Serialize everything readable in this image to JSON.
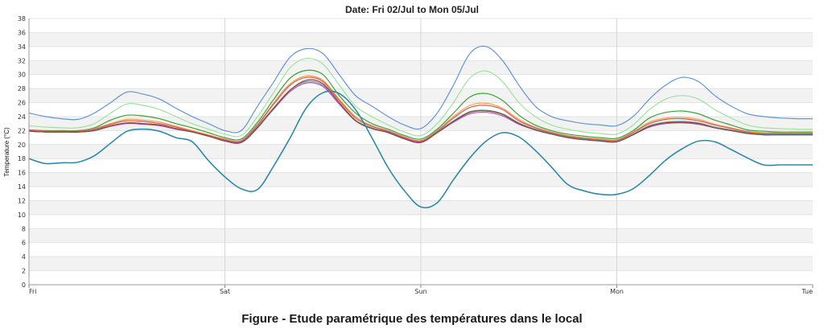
{
  "caption": "Figure  - Etude paramétrique  des températures dans  le local",
  "chart_data": {
    "type": "line",
    "title": "Date: Fri 02/Jul to Mon 05/Jul",
    "xlabel": "",
    "ylabel": "Temperature (°C)",
    "ylim": [
      0,
      38
    ],
    "yticks": [
      0,
      2,
      4,
      6,
      8,
      10,
      12,
      14,
      16,
      18,
      20,
      22,
      24,
      26,
      28,
      30,
      32,
      34,
      36,
      38
    ],
    "xlim": [
      0,
      96
    ],
    "x_ticks": [
      {
        "x": 0,
        "label": "Fri"
      },
      {
        "x": 24,
        "label": "Sat"
      },
      {
        "x": 48,
        "label": "Sun"
      },
      {
        "x": 72,
        "label": "Mon"
      },
      {
        "x": 96,
        "label": "Tue"
      }
    ],
    "grid": true,
    "grid_bands": true,
    "x": [
      0,
      2,
      4,
      6,
      8,
      10,
      12,
      14,
      16,
      18,
      20,
      22,
      24,
      26,
      28,
      30,
      32,
      34,
      36,
      38,
      40,
      42,
      44,
      46,
      48,
      50,
      52,
      54,
      56,
      58,
      60,
      62,
      64,
      66,
      68,
      70,
      72,
      74,
      76,
      78,
      80,
      82,
      84,
      86,
      88,
      90,
      92,
      94,
      96
    ],
    "series": [
      {
        "color": "#6495d4",
        "values": [
          24.5,
          24.0,
          23.7,
          23.6,
          24.5,
          26.0,
          27.5,
          27.2,
          26.5,
          25.2,
          24.0,
          23.0,
          22.0,
          22.0,
          25.5,
          29.0,
          32.5,
          33.7,
          33.0,
          30.0,
          27.0,
          25.5,
          24.0,
          22.8,
          22.3,
          24.5,
          28.5,
          33.0,
          34.0,
          32.0,
          28.5,
          25.5,
          24.0,
          23.4,
          23.0,
          22.8,
          22.7,
          24.0,
          26.5,
          28.5,
          29.6,
          29.0,
          27.0,
          25.5,
          24.4,
          24.0,
          23.8,
          23.7,
          23.7
        ]
      },
      {
        "color": "#9ee29e",
        "values": [
          22.7,
          22.5,
          22.4,
          22.4,
          23.0,
          24.5,
          25.8,
          25.6,
          25.0,
          24.0,
          23.0,
          22.2,
          21.5,
          21.3,
          24.0,
          27.5,
          31.0,
          32.3,
          31.5,
          28.5,
          25.5,
          24.0,
          22.8,
          21.8,
          21.3,
          23.0,
          26.0,
          29.5,
          30.5,
          29.0,
          26.0,
          24.0,
          22.8,
          22.2,
          21.8,
          21.6,
          21.5,
          22.8,
          25.0,
          26.5,
          27.0,
          26.5,
          25.0,
          23.8,
          22.8,
          22.4,
          22.3,
          22.2,
          22.2
        ]
      },
      {
        "color": "#3aa13a",
        "values": [
          22.1,
          22.0,
          22.0,
          22.0,
          22.4,
          23.5,
          24.2,
          24.1,
          23.7,
          23.0,
          22.4,
          21.7,
          21.0,
          20.8,
          23.2,
          26.5,
          29.5,
          30.6,
          30.0,
          27.0,
          24.5,
          23.0,
          22.2,
          21.3,
          20.8,
          22.2,
          24.5,
          26.8,
          27.3,
          26.3,
          24.2,
          22.8,
          22.0,
          21.5,
          21.2,
          21.0,
          20.9,
          22.0,
          23.8,
          24.6,
          24.8,
          24.4,
          23.5,
          22.8,
          22.1,
          21.9,
          21.8,
          21.8,
          21.8
        ]
      },
      {
        "color": "#e8a44a",
        "values": [
          22.0,
          21.9,
          21.9,
          21.9,
          22.3,
          23.0,
          23.6,
          23.5,
          23.2,
          22.6,
          22.0,
          21.4,
          20.8,
          20.6,
          22.9,
          26.0,
          28.7,
          29.8,
          29.2,
          26.5,
          24.0,
          22.7,
          22.0,
          21.1,
          20.6,
          22.0,
          24.0,
          25.6,
          25.9,
          25.2,
          23.6,
          22.5,
          21.8,
          21.3,
          21.0,
          20.8,
          20.7,
          21.8,
          23.2,
          23.8,
          23.9,
          23.6,
          22.9,
          22.4,
          21.9,
          21.7,
          21.7,
          21.7,
          21.7
        ]
      },
      {
        "color": "#e05656",
        "values": [
          22.0,
          21.9,
          21.9,
          21.9,
          22.2,
          22.9,
          23.4,
          23.3,
          23.0,
          22.5,
          21.9,
          21.3,
          20.7,
          20.5,
          22.8,
          25.8,
          28.5,
          29.6,
          29.0,
          26.3,
          23.8,
          22.6,
          21.9,
          21.0,
          20.5,
          21.9,
          23.8,
          25.3,
          25.6,
          25.0,
          23.4,
          22.4,
          21.7,
          21.2,
          20.9,
          20.7,
          20.6,
          21.7,
          23.0,
          23.6,
          23.7,
          23.4,
          22.8,
          22.3,
          21.8,
          21.6,
          21.6,
          21.6,
          21.6
        ]
      },
      {
        "color": "#5f9ea0",
        "values": [
          21.9,
          21.8,
          21.8,
          21.8,
          22.1,
          22.7,
          23.1,
          23.0,
          22.8,
          22.3,
          21.8,
          21.2,
          20.6,
          20.4,
          22.6,
          25.3,
          27.8,
          29.0,
          28.5,
          26.0,
          23.5,
          22.4,
          21.8,
          20.9,
          20.4,
          21.8,
          23.4,
          24.7,
          24.9,
          24.4,
          23.1,
          22.2,
          21.6,
          21.1,
          20.8,
          20.6,
          20.5,
          21.5,
          22.7,
          23.2,
          23.3,
          23.1,
          22.5,
          22.1,
          21.7,
          21.5,
          21.5,
          21.5,
          21.5
        ]
      },
      {
        "color": "#b44cc4",
        "values": [
          21.9,
          21.8,
          21.8,
          21.8,
          22.0,
          22.6,
          23.0,
          22.9,
          22.7,
          22.2,
          21.8,
          21.2,
          20.6,
          20.4,
          22.5,
          25.1,
          27.6,
          28.8,
          28.3,
          25.8,
          23.4,
          22.3,
          21.8,
          20.9,
          20.4,
          21.7,
          23.2,
          24.4,
          24.6,
          24.1,
          22.9,
          22.1,
          21.5,
          21.0,
          20.7,
          20.5,
          20.4,
          21.4,
          22.5,
          23.0,
          23.1,
          22.9,
          22.4,
          22.0,
          21.6,
          21.4,
          21.4,
          21.4,
          21.4
        ]
      },
      {
        "color": "#8a4a2a",
        "values": [
          21.9,
          21.8,
          21.8,
          21.8,
          22.0,
          22.7,
          23.1,
          23.0,
          22.8,
          22.3,
          21.8,
          21.2,
          20.5,
          20.3,
          22.4,
          25.2,
          27.8,
          29.2,
          28.7,
          26.0,
          23.4,
          22.3,
          21.7,
          20.8,
          20.3,
          21.7,
          23.3,
          24.6,
          24.8,
          24.3,
          23.0,
          22.1,
          21.5,
          21.0,
          20.7,
          20.5,
          20.4,
          21.4,
          22.6,
          23.1,
          23.2,
          23.0,
          22.4,
          22.0,
          21.6,
          21.4,
          21.4,
          21.4,
          21.4
        ]
      },
      {
        "color": "#2e8ba8",
        "values": [
          18.0,
          17.3,
          17.4,
          17.5,
          18.4,
          20.2,
          21.9,
          22.2,
          21.9,
          21.0,
          20.4,
          17.7,
          15.4,
          13.7,
          13.6,
          17.0,
          21.0,
          25.3,
          27.4,
          27.3,
          25.0,
          21.0,
          16.7,
          13.4,
          11.1,
          11.7,
          15.0,
          18.1,
          20.5,
          21.7,
          21.1,
          19.2,
          16.8,
          14.3,
          13.4,
          12.9,
          12.9,
          13.7,
          15.6,
          17.8,
          19.4,
          20.5,
          20.4,
          19.3,
          18.1,
          17.1,
          17.1,
          17.1,
          17.1
        ]
      }
    ]
  }
}
